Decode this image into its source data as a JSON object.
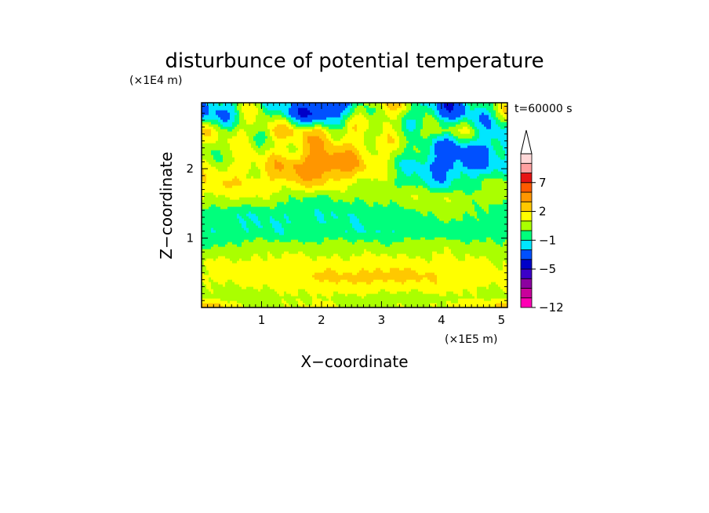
{
  "chart_data": {
    "type": "heatmap",
    "title": "disturbunce of potential temperature",
    "time_label": "t=60000 s",
    "xlabel": "X−coordinate",
    "ylabel": "Z−coordinate",
    "x_unit": "(×1E5 m)",
    "y_unit": "(×1E4 m)",
    "xlim": [
      0,
      5.1
    ],
    "ylim": [
      0,
      2.95
    ],
    "x_ticks": [
      {
        "value": 1,
        "label": "1"
      },
      {
        "value": 2,
        "label": "2"
      },
      {
        "value": 3,
        "label": "3"
      },
      {
        "value": 4,
        "label": "4"
      },
      {
        "value": 5,
        "label": "5"
      }
    ],
    "y_ticks": [
      {
        "value": 1,
        "label": "1"
      },
      {
        "value": 2,
        "label": "2"
      }
    ],
    "colorbar": {
      "levels_low_to_high": [
        -12,
        -10,
        -8,
        -6,
        -5,
        -4,
        -2,
        -1,
        0,
        1,
        2,
        3,
        5,
        7,
        9,
        11
      ],
      "colors_low_to_high": [
        "#ff00b4",
        "#c8009b",
        "#8c00a0",
        "#3c00c8",
        "#0000c8",
        "#0050ff",
        "#00e6ff",
        "#00ff7c",
        "#aaff00",
        "#ffff00",
        "#ffc800",
        "#ff9600",
        "#ff5a00",
        "#e61414",
        "#ffa0a0",
        "#ffd7d7"
      ],
      "labels": [
        {
          "value": -12,
          "text": "−12"
        },
        {
          "value": -5,
          "text": "−5"
        },
        {
          "value": -1,
          "text": "−1"
        },
        {
          "value": 2,
          "text": "2"
        },
        {
          "value": 7,
          "text": "7"
        }
      ],
      "extend": "max"
    },
    "z_grid_rows_bottom_to_top": [
      {
        "z": 0.05,
        "x": [
          0,
          1,
          2,
          3,
          4,
          5.1
        ],
        "v": [
          2.4,
          0.5,
          1.2,
          0.6,
          1.0,
          2.2
        ]
      },
      {
        "z": 0.15,
        "x": [
          0,
          1,
          2,
          3,
          4,
          5.1
        ],
        "v": [
          0.6,
          0.4,
          1.0,
          0.5,
          0.7,
          0.8
        ]
      },
      {
        "z": 0.45,
        "x": [
          0,
          1,
          2,
          3,
          4,
          5.1
        ],
        "v": [
          1.2,
          1.5,
          2.1,
          2.6,
          2.0,
          1.2
        ]
      },
      {
        "z": 0.65,
        "x": [
          0,
          1,
          2,
          3,
          4,
          5.1
        ],
        "v": [
          1.1,
          1.3,
          1.4,
          1.5,
          1.3,
          1.0
        ]
      },
      {
        "z": 0.9,
        "x": [
          0,
          1,
          2,
          3,
          4,
          5.1
        ],
        "v": [
          -0.2,
          0.5,
          0.4,
          0.3,
          0.6,
          0.2
        ]
      },
      {
        "z": 1.1,
        "x": [
          0,
          1,
          2,
          3,
          4,
          5.1
        ],
        "v": [
          -0.8,
          -0.9,
          -0.8,
          -0.9,
          -0.6,
          -0.7
        ]
      },
      {
        "z": 1.35,
        "x": [
          0,
          1,
          2,
          3,
          4,
          5.1
        ],
        "v": [
          -0.6,
          -0.9,
          -0.9,
          -0.8,
          0.4,
          -0.5
        ]
      },
      {
        "z": 1.6,
        "x": [
          0,
          1,
          2,
          3,
          4,
          5.1
        ],
        "v": [
          1.2,
          1.0,
          -0.3,
          0.6,
          0.9,
          0.2
        ]
      },
      {
        "z": 1.8,
        "x": [
          0,
          1,
          2,
          3,
          4,
          5.1
        ],
        "v": [
          1.8,
          1.6,
          2.3,
          0.4,
          -1.5,
          0.6
        ]
      },
      {
        "z": 2.05,
        "x": [
          0,
          1,
          2,
          3,
          4,
          5.1
        ],
        "v": [
          1.0,
          1.5,
          4.8,
          1.2,
          -3.0,
          -1.2
        ]
      },
      {
        "z": 2.3,
        "x": [
          0,
          1,
          2,
          3,
          4,
          5.1
        ],
        "v": [
          0.4,
          0.8,
          2.6,
          1.8,
          -2.5,
          -2.0
        ]
      },
      {
        "z": 2.55,
        "x": [
          0,
          1,
          2,
          3,
          4,
          5.1
        ],
        "v": [
          0.8,
          1.2,
          2.2,
          0.2,
          0.8,
          -1.5
        ]
      },
      {
        "z": 2.8,
        "x": [
          0,
          1,
          2,
          3,
          4,
          5.1
        ],
        "v": [
          -2.5,
          0.5,
          -4.5,
          2.4,
          -3.0,
          0.5
        ]
      }
    ]
  }
}
